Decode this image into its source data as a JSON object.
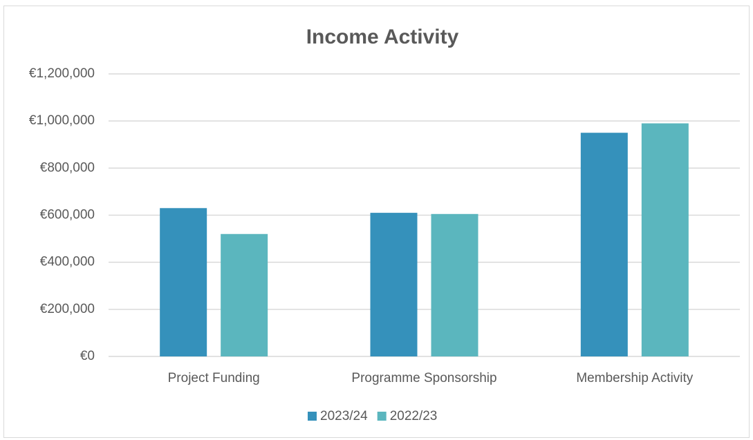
{
  "chart_data": {
    "type": "bar",
    "title": "Income Activity",
    "categories": [
      "Project Funding",
      "Programme Sponsorship",
      "Membership Activity"
    ],
    "series": [
      {
        "name": "2023/24",
        "color": "#3591bb",
        "values": [
          630000,
          610000,
          950000
        ]
      },
      {
        "name": "2022/23",
        "color": "#5bb6be",
        "values": [
          520000,
          605000,
          990000
        ]
      }
    ],
    "ylim": [
      0,
      1200000
    ],
    "yticks": [
      {
        "value": 0,
        "label": "€0"
      },
      {
        "value": 200000,
        "label": "€200,000"
      },
      {
        "value": 400000,
        "label": "€400,000"
      },
      {
        "value": 600000,
        "label": "€600,000"
      },
      {
        "value": 800000,
        "label": "€800,000"
      },
      {
        "value": 1000000,
        "label": "€1,000,000"
      },
      {
        "value": 1200000,
        "label": "€1,200,000"
      }
    ],
    "grid": true,
    "legend": "bottom"
  }
}
